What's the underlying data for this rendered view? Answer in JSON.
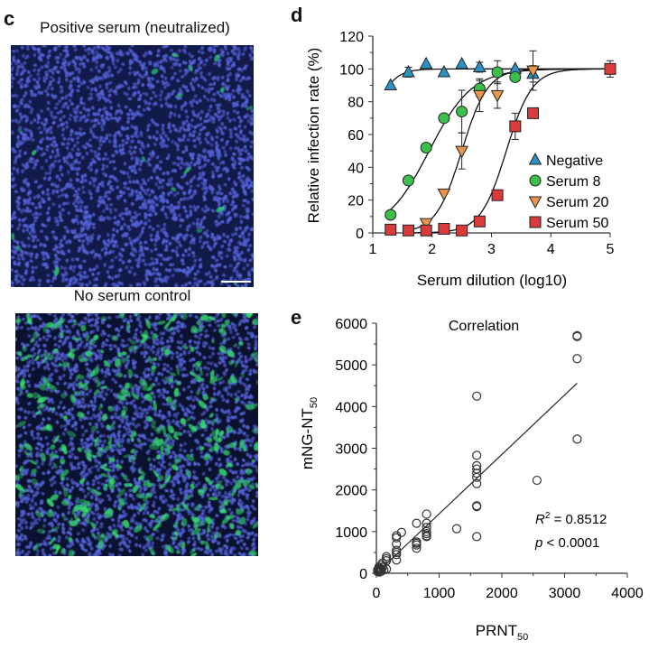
{
  "panel_c": {
    "letter": "c",
    "top_caption": "Positive serum (neutralized)",
    "bottom_caption": "No serum control",
    "images": [
      {
        "name": "positive-serum-micrograph",
        "nuclei_color": "#5563d8",
        "background": "#121a4a",
        "green_cell_color": "#2ee07a",
        "green_density": "sparse"
      },
      {
        "name": "no-serum-micrograph",
        "nuclei_color": "#5563d8",
        "background": "#0b1230",
        "green_cell_color": "#35e26e",
        "green_density": "dense"
      }
    ],
    "scale_bar": true
  },
  "chart_data": [
    {
      "panel": "d",
      "type": "scatter",
      "title": "",
      "xlabel": "Serum dilution (log10)",
      "ylabel": "Relative infection rate (%)",
      "xlim": [
        1,
        5
      ],
      "ylim": [
        0,
        120
      ],
      "xticks": [
        1,
        2,
        3,
        4,
        5
      ],
      "yticks": [
        0,
        20,
        40,
        60,
        80,
        100,
        120
      ],
      "legend_position": "right",
      "series": [
        {
          "name": "Negative",
          "marker": "triangle-up",
          "color": "#2b93c4",
          "x": [
            1.3,
            1.6,
            1.9,
            2.2,
            2.5,
            2.8,
            3.4,
            3.7
          ],
          "y": [
            90,
            98,
            103,
            98,
            103,
            101,
            100,
            97
          ],
          "err": [
            0,
            3,
            0,
            0,
            0,
            3,
            0,
            5
          ],
          "fit": {
            "bottom": 0,
            "top": 100,
            "log_ic50": 0.9,
            "hill": 2.5
          }
        },
        {
          "name": "Serum 8",
          "marker": "circle",
          "color": "#3bbf4a",
          "x": [
            1.3,
            1.6,
            1.9,
            2.2,
            2.5,
            2.8,
            3.1,
            3.4
          ],
          "y": [
            11,
            32,
            52,
            70,
            74,
            88,
            98,
            95
          ],
          "err": [
            0,
            0,
            0,
            2,
            13,
            5,
            7,
            2
          ],
          "fit": {
            "bottom": 0,
            "top": 100,
            "log_ic50": 1.95,
            "hill": 1.2
          }
        },
        {
          "name": "Serum 20",
          "marker": "triangle-down",
          "color": "#e8974a",
          "x": [
            1.9,
            2.2,
            2.5,
            2.8,
            3.1,
            3.7
          ],
          "y": [
            6,
            24,
            50,
            84,
            84,
            99
          ],
          "err": [
            0,
            0,
            11,
            10,
            8,
            12
          ],
          "fit": {
            "bottom": 0,
            "top": 100,
            "log_ic50": 2.5,
            "hill": 2.0
          }
        },
        {
          "name": "Serum 50",
          "marker": "square",
          "color": "#d93a3a",
          "x": [
            1.3,
            1.6,
            1.9,
            2.2,
            2.5,
            2.8,
            3.1,
            3.4,
            3.7,
            5.0
          ],
          "y": [
            2,
            1.5,
            1.5,
            2.5,
            1.5,
            7,
            23,
            65,
            73,
            100
          ],
          "err": [
            0,
            0,
            0,
            0,
            0,
            0,
            0,
            8,
            0,
            5
          ],
          "fit": {
            "bottom": 0,
            "top": 100,
            "log_ic50": 3.25,
            "hill": 2.0
          }
        }
      ]
    },
    {
      "panel": "e",
      "type": "scatter",
      "title": "Correlation",
      "xlabel": "PRNT",
      "xlabel_sub": "50",
      "ylabel": "mNG-NT",
      "ylabel_sub": "50",
      "xlim": [
        0,
        4000
      ],
      "ylim": [
        0,
        6000
      ],
      "xticks": [
        0,
        1000,
        2000,
        3000,
        4000
      ],
      "yticks": [
        0,
        1000,
        2000,
        3000,
        4000,
        5000,
        6000
      ],
      "annotation_r2_label": "R",
      "annotation_r2_sup": "2",
      "annotation_r2_value": " = 0.8512",
      "annotation_p_label": "p",
      "annotation_p_value": " < 0.0001",
      "regression": {
        "x": [
          0,
          3200
        ],
        "y": [
          0,
          4560
        ]
      },
      "points": {
        "x": [
          20,
          20,
          40,
          40,
          40,
          50,
          60,
          80,
          80,
          80,
          100,
          100,
          120,
          160,
          160,
          160,
          160,
          320,
          320,
          320,
          320,
          320,
          320,
          320,
          400,
          640,
          640,
          640,
          640,
          640,
          800,
          800,
          800,
          800,
          800,
          800,
          800,
          1280,
          1600,
          1600,
          1600,
          1600,
          1600,
          1600,
          1600,
          1600,
          1600,
          1600,
          2560,
          3200,
          3200,
          3200,
          3200
        ],
        "y": [
          40,
          80,
          60,
          100,
          150,
          30,
          120,
          50,
          100,
          200,
          150,
          250,
          80,
          100,
          300,
          350,
          400,
          320,
          450,
          550,
          700,
          850,
          900,
          500,
          980,
          600,
          680,
          750,
          1200,
          720,
          880,
          950,
          1000,
          1100,
          1200,
          1420,
          900,
          1070,
          880,
          1600,
          1620,
          2150,
          2300,
          2400,
          2500,
          2580,
          2830,
          4250,
          2230,
          3220,
          5150,
          5680,
          5700
        ]
      }
    }
  ]
}
